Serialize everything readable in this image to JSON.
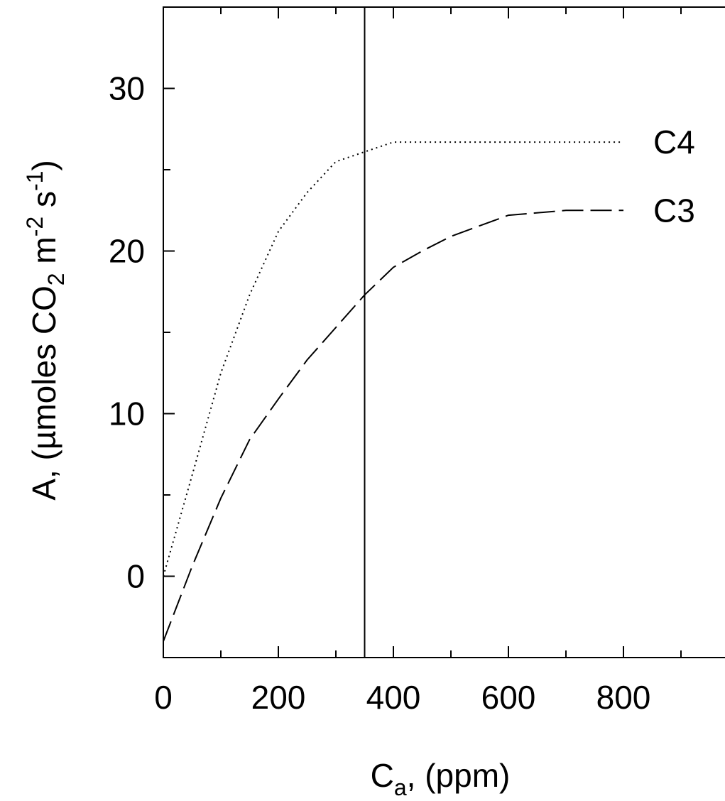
{
  "chart_data": {
    "type": "line",
    "xlabel": {
      "main": "C",
      "sub": "a",
      "rest": ", (ppm)"
    },
    "ylabel": {
      "pre": "A, (µmoles CO",
      "sub": "2",
      "mid": " m",
      "sup1": "-2",
      "mid2": " s",
      "sup2": "-1",
      "post": ")"
    },
    "xlim": [
      0,
      1000
    ],
    "ylim": [
      -5,
      35
    ],
    "x_ticks": [
      0,
      200,
      400,
      600,
      800
    ],
    "x_tick_labels": [
      "0",
      "200",
      "400",
      "600",
      "800"
    ],
    "x_minor_ticks": [
      100,
      300,
      500,
      700,
      900
    ],
    "y_ticks": [
      0,
      10,
      20,
      30
    ],
    "y_tick_labels": [
      "0",
      "10",
      "20",
      "30"
    ],
    "y_minor_ticks": [
      5,
      15,
      25
    ],
    "vertical_line_x": 350,
    "grid": false,
    "series": [
      {
        "name": "C4",
        "style": "dotted",
        "x": [
          0,
          50,
          100,
          150,
          200,
          250,
          300,
          350,
          400,
          500,
          600,
          700,
          800
        ],
        "y": [
          0,
          6.2,
          12.5,
          17.3,
          21.2,
          23.6,
          25.5,
          26.1,
          26.7,
          26.7,
          26.7,
          26.7,
          26.7
        ]
      },
      {
        "name": "C3",
        "style": "dashed",
        "x": [
          0,
          50,
          100,
          150,
          200,
          250,
          300,
          350,
          400,
          450,
          500,
          600,
          700,
          800
        ],
        "y": [
          -4,
          0.6,
          4.8,
          8.4,
          10.9,
          13.3,
          15.3,
          17.3,
          19.0,
          20.0,
          20.9,
          22.2,
          22.5,
          22.5
        ]
      }
    ]
  }
}
